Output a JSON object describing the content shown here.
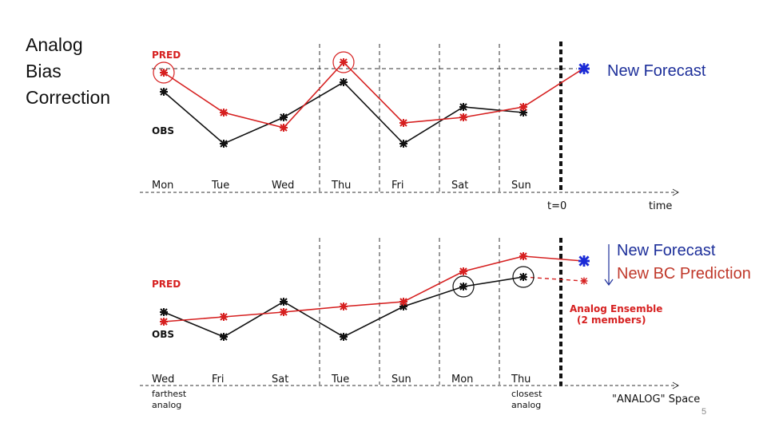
{
  "slide": {
    "title_lines": [
      "Analog",
      "Bias",
      "Correction"
    ],
    "page_number": "5"
  },
  "colors": {
    "pred": "#d62020",
    "obs": "#111111",
    "forecast": "#1a2ad6",
    "callout_blue": "#1d2f9a",
    "callout_red": "#c0392b"
  },
  "top_panel": {
    "pred_label": "PRED",
    "obs_label": "OBS",
    "new_forecast_label": "New Forecast",
    "t0_label": "t=0",
    "axis_label": "time",
    "days": [
      "Mon",
      "Tue",
      "Wed",
      "Thu",
      "Fri",
      "Sat",
      "Sun"
    ]
  },
  "bottom_panel": {
    "pred_label": "PRED",
    "obs_label": "OBS",
    "new_forecast_label": "New Forecast",
    "new_bc_label": "New BC Prediction",
    "ensemble_label_1": "Analog Ensemble",
    "ensemble_label_2": "(2 members)",
    "axis_label": "\"ANALOG\"  Space",
    "days": [
      "Wed",
      "Fri",
      "Sat",
      "Tue",
      "Sun",
      "Mon",
      "Thu"
    ],
    "farthest_1": "farthest",
    "farthest_2": "analog",
    "closest_1": "closest",
    "closest_2": "analog"
  }
}
